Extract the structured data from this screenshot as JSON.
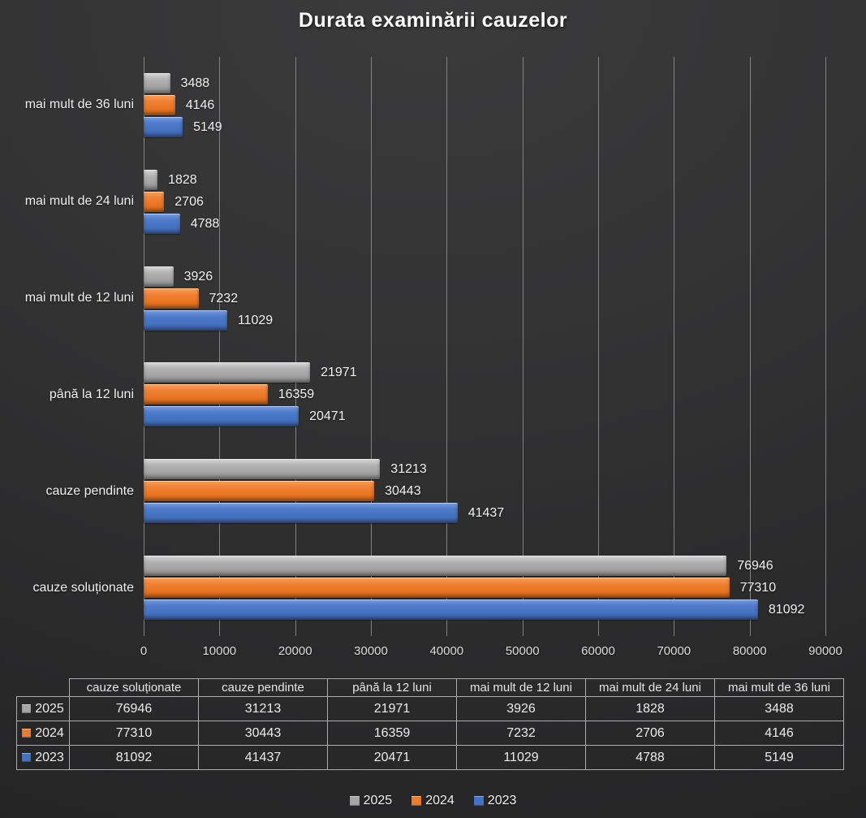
{
  "title": "Durata examinării cauzelor",
  "chart_data": {
    "type": "bar",
    "orientation": "horizontal",
    "title": "Durata examinării cauzelor",
    "categories_top_to_bottom": [
      "mai mult de 36 luni",
      "mai mult de 24 luni",
      "mai mult de 12 luni",
      "până la 12 luni",
      "cauze pendinte",
      "cauze soluționate"
    ],
    "series": [
      {
        "name": "2025",
        "color": "#a6a6a6",
        "values_top_to_bottom": [
          3488,
          1828,
          3926,
          21971,
          31213,
          76946
        ]
      },
      {
        "name": "2024",
        "color": "#ed7d31",
        "values_top_to_bottom": [
          4146,
          2706,
          7232,
          16359,
          30443,
          77310
        ]
      },
      {
        "name": "2023",
        "color": "#4472c4",
        "values_top_to_bottom": [
          5149,
          4788,
          11029,
          20471,
          41437,
          81092
        ]
      }
    ],
    "x_ticks": [
      0,
      10000,
      20000,
      30000,
      40000,
      50000,
      60000,
      70000,
      80000,
      90000
    ],
    "xlim": [
      0,
      90000
    ],
    "grid": "vertical",
    "legend_position": "bottom",
    "data_labels": true
  },
  "data_table": {
    "headers": [
      "cauze soluționate",
      "cauze pendinte",
      "până la 12 luni",
      "mai mult de 12 luni",
      "mai mult de 24 luni",
      "mai mult de 36 luni"
    ],
    "rows": [
      {
        "label": "2025",
        "color": "#a6a6a6",
        "values": [
          76946,
          31213,
          21971,
          3926,
          1828,
          3488
        ]
      },
      {
        "label": "2024",
        "color": "#ed7d31",
        "values": [
          77310,
          30443,
          16359,
          7232,
          2706,
          4146
        ]
      },
      {
        "label": "2023",
        "color": "#4472c4",
        "values": [
          81092,
          41437,
          20471,
          11029,
          4788,
          5149
        ]
      }
    ]
  },
  "legend": {
    "items": [
      {
        "label": "2025",
        "color": "#a6a6a6"
      },
      {
        "label": "2024",
        "color": "#ed7d31"
      },
      {
        "label": "2023",
        "color": "#4472c4"
      }
    ]
  }
}
